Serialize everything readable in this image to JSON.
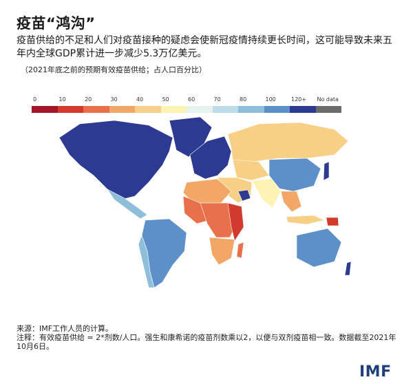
{
  "header": {
    "title": "疫苗“鸿沟”",
    "subtitle": "疫苗供给的不足和人们对疫苗接种的疑虑会使新冠疫情持续更长时间，这可能导致未来五年内全球GDP累计进一步减少5.3万亿美元。",
    "note": "（2021年底之前的预期有效疫苗供给；占人口百分比）"
  },
  "legend": {
    "items": [
      {
        "label": "0",
        "color": "#a3152a"
      },
      {
        "label": "10",
        "color": "#d23a2e"
      },
      {
        "label": "20",
        "color": "#e8704a"
      },
      {
        "label": "30",
        "color": "#f2a766"
      },
      {
        "label": "40",
        "color": "#f8cf86"
      },
      {
        "label": "50",
        "color": "#fdf3b4"
      },
      {
        "label": "60",
        "color": "#e6f2ee"
      },
      {
        "label": "70",
        "color": "#bcdcea"
      },
      {
        "label": "80",
        "color": "#8fbedb"
      },
      {
        "label": "100",
        "color": "#5d8fc8"
      },
      {
        "label": "120+",
        "color": "#2d3a92"
      },
      {
        "label": "No data",
        "color": "#6b6b6b"
      }
    ]
  },
  "map_regions": {
    "north_america": "#2d3a92",
    "greenland": "#2d3a92",
    "central_america": "#8fbedb",
    "south_america": "#5d8fc8",
    "south_america_west": "#8fbedb",
    "europe": "#2d3a92",
    "russia": "#f8cf86",
    "north_africa": "#f2a766",
    "west_africa": "#e8704a",
    "central_africa": "#e8704a",
    "east_africa": "#d23a2e",
    "southern_africa": "#f2a766",
    "middle_east": "#f8cf86",
    "gulf": "#2d3a92",
    "central_asia": "#f8cf86",
    "india": "#fdf3b4",
    "china": "#5d8fc8",
    "southeast_asia": "#f2a766",
    "indonesia": "#f8cf86",
    "japan": "#2d3a92",
    "australia": "#5d8fc8",
    "new_zealand": "#2d3a92",
    "png": "#d23a2e",
    "madagascar": "#e8704a"
  },
  "footer": {
    "source": "来源：IMF工作人员的计算。",
    "note": "注释：有效疫苗供给 = 2*剂数/人口。强生和康希诺的疫苗剂数乘以2，以便与双剂疫苗相一致。数据截至2021年10月6日。"
  },
  "logo": "IMF"
}
